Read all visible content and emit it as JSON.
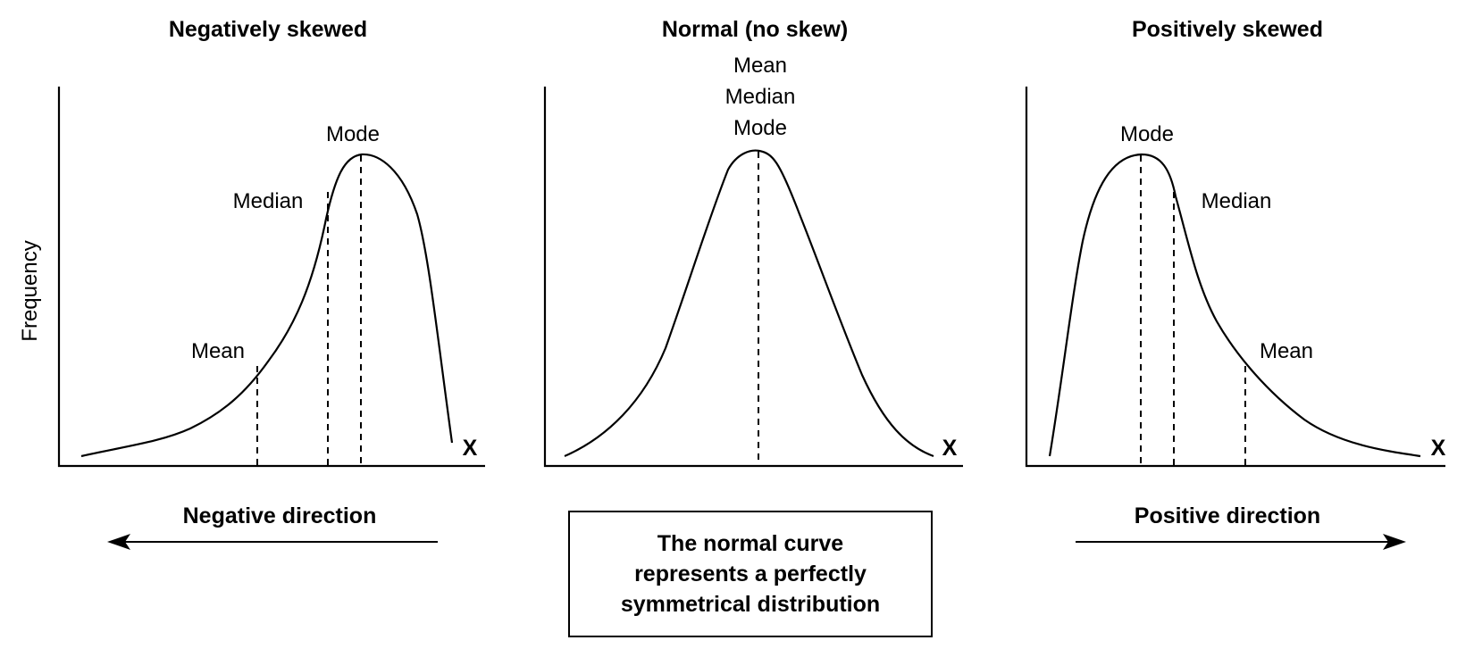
{
  "panels": {
    "negative": {
      "title": "Negatively skewed",
      "labels": {
        "mode": "Mode",
        "median": "Median",
        "mean": "Mean"
      },
      "x_label": "X",
      "direction": "Negative direction"
    },
    "normal": {
      "title": "Normal (no skew)",
      "labels": {
        "mean": "Mean",
        "median": "Median",
        "mode": "Mode"
      },
      "x_label": "X"
    },
    "positive": {
      "title": "Positively skewed",
      "labels": {
        "mode": "Mode",
        "median": "Median",
        "mean": "Mean"
      },
      "x_label": "X",
      "direction": "Positive direction"
    }
  },
  "y_axis_label": "Frequency",
  "note": "The normal curve\nrepresents a perfectly\nsymmetrical distribution"
}
